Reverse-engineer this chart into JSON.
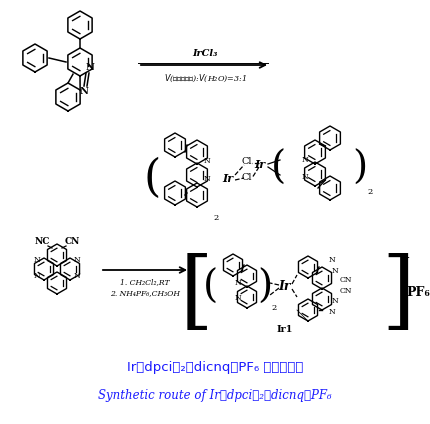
{
  "bg_color": "#ffffff",
  "fig_width": 4.3,
  "fig_height": 4.24,
  "dpi": 100,
  "title_zh": "Ir（dpci）₂（dicnq）PF₆ 的合成路线",
  "title_en": "Synthetic route of Ir（dpci）₂（dicnq）PF₆",
  "step1_top": "IrCl₃",
  "step1_bot": "V(乙氧基乙醇):V(H₂O)=3:1",
  "step2_r1": "1. CH₂Cl₂,RT",
  "step2_r2": "2. NH₄PF₆,CH₃OH",
  "pf6": "PF₆⁻",
  "ir1": "Ir1",
  "lc": "#1a1aff",
  "black": "#000000"
}
